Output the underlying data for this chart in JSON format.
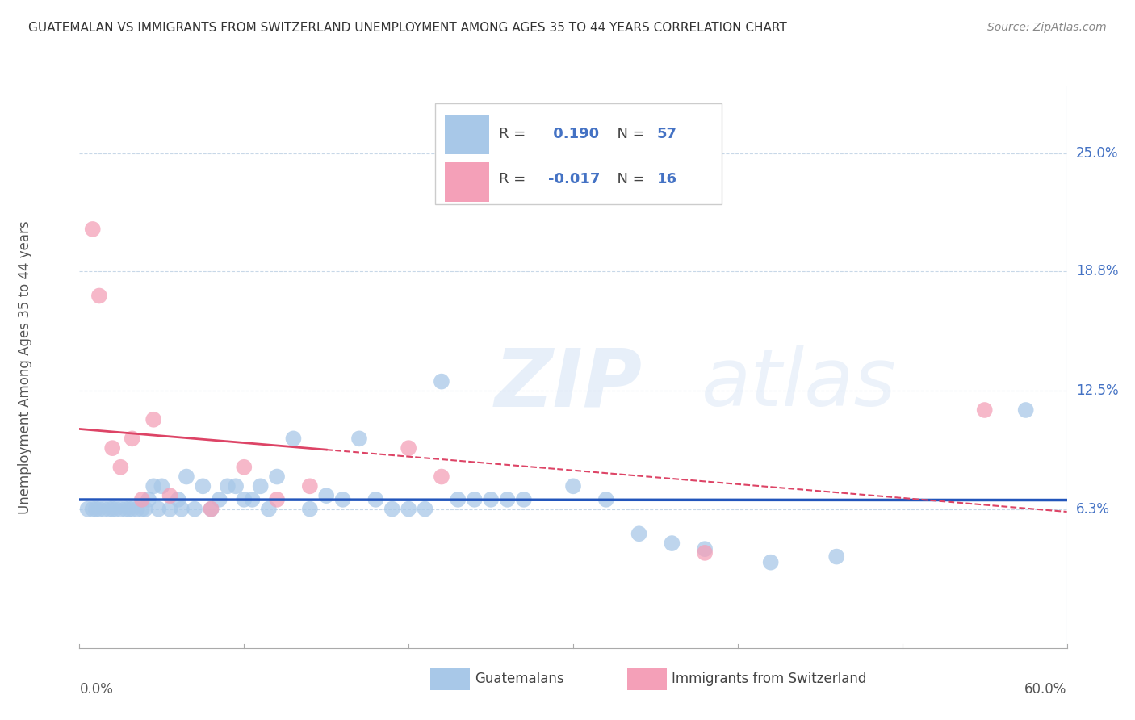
{
  "title": "GUATEMALAN VS IMMIGRANTS FROM SWITZERLAND UNEMPLOYMENT AMONG AGES 35 TO 44 YEARS CORRELATION CHART",
  "source": "Source: ZipAtlas.com",
  "ylabel": "Unemployment Among Ages 35 to 44 years",
  "xlim": [
    0.0,
    0.6
  ],
  "ylim": [
    -0.01,
    0.285
  ],
  "ytick_vals": [
    0.063,
    0.125,
    0.188,
    0.25
  ],
  "ytick_labels": [
    "6.3%",
    "12.5%",
    "18.8%",
    "25.0%"
  ],
  "R_guatemalan": 0.19,
  "N_guatemalan": 57,
  "R_swiss": -0.017,
  "N_swiss": 16,
  "guatemalan_color": "#a8c8e8",
  "swiss_color": "#f4a0b8",
  "guatemalan_line_color": "#2255bb",
  "swiss_line_color": "#dd4466",
  "background_color": "#ffffff",
  "guatemalan_x": [
    0.005,
    0.008,
    0.01,
    0.012,
    0.015,
    0.018,
    0.02,
    0.022,
    0.025,
    0.028,
    0.03,
    0.032,
    0.035,
    0.038,
    0.04,
    0.042,
    0.045,
    0.048,
    0.05,
    0.055,
    0.06,
    0.062,
    0.065,
    0.07,
    0.075,
    0.08,
    0.085,
    0.09,
    0.095,
    0.1,
    0.105,
    0.11,
    0.115,
    0.12,
    0.13,
    0.14,
    0.15,
    0.16,
    0.17,
    0.18,
    0.19,
    0.2,
    0.21,
    0.22,
    0.23,
    0.24,
    0.25,
    0.26,
    0.27,
    0.3,
    0.32,
    0.34,
    0.36,
    0.38,
    0.42,
    0.46,
    0.575
  ],
  "guatemalan_y": [
    0.063,
    0.063,
    0.063,
    0.063,
    0.063,
    0.063,
    0.063,
    0.063,
    0.063,
    0.063,
    0.063,
    0.063,
    0.063,
    0.063,
    0.063,
    0.068,
    0.075,
    0.063,
    0.075,
    0.063,
    0.068,
    0.063,
    0.08,
    0.063,
    0.075,
    0.063,
    0.068,
    0.075,
    0.075,
    0.068,
    0.068,
    0.075,
    0.063,
    0.08,
    0.1,
    0.063,
    0.07,
    0.068,
    0.1,
    0.068,
    0.063,
    0.063,
    0.063,
    0.13,
    0.068,
    0.068,
    0.068,
    0.068,
    0.068,
    0.075,
    0.068,
    0.05,
    0.045,
    0.042,
    0.035,
    0.038,
    0.115
  ],
  "swiss_x": [
    0.008,
    0.012,
    0.02,
    0.025,
    0.032,
    0.038,
    0.045,
    0.055,
    0.08,
    0.1,
    0.12,
    0.14,
    0.2,
    0.22,
    0.38,
    0.55
  ],
  "swiss_y": [
    0.21,
    0.175,
    0.095,
    0.085,
    0.1,
    0.068,
    0.11,
    0.07,
    0.063,
    0.085,
    0.068,
    0.075,
    0.095,
    0.08,
    0.04,
    0.115
  ]
}
